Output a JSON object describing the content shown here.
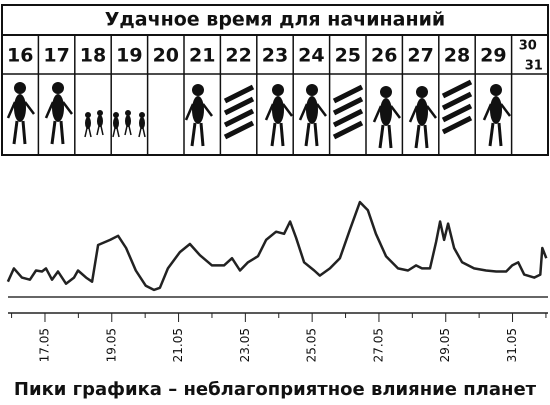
{
  "title": "Удачное время для начинаний",
  "days": [
    "16",
    "17",
    "18",
    "19",
    "20",
    "21",
    "22",
    "23",
    "24",
    "25",
    "26",
    "27",
    "28",
    "29"
  ],
  "last_days": [
    "30",
    "31"
  ],
  "caption": "Пики графика – неблагоприятное влияние планет",
  "chart_data": {
    "type": "line",
    "color": "#222222",
    "x": [
      15.89,
      16.07,
      16.31,
      16.55,
      16.73,
      16.91,
      17.03,
      17.21,
      17.39,
      17.63,
      17.87,
      17.99,
      18.23,
      18.41,
      18.59,
      18.95,
      19.19,
      19.43,
      19.72,
      20.02,
      20.26,
      20.44,
      20.68,
      21.04,
      21.34,
      21.64,
      22.0,
      22.36,
      22.6,
      22.84,
      23.08,
      23.38,
      23.62,
      23.92,
      24.16,
      24.34,
      24.52,
      24.76,
      25.06,
      25.23,
      25.53,
      25.83,
      26.13,
      26.43,
      26.67,
      26.91,
      27.21,
      27.57,
      27.87,
      28.11,
      28.29,
      28.53,
      28.71,
      28.83,
      28.95,
      29.07,
      29.25,
      29.49,
      29.85,
      30.21,
      30.51,
      30.81,
      30.99,
      31.17,
      31.35,
      31.65,
      31.83,
      31.89,
      32.01
    ],
    "values": [
      1.5,
      2.8,
      1.9,
      1.7,
      2.6,
      2.5,
      2.8,
      1.7,
      2.5,
      1.3,
      1.9,
      2.6,
      1.9,
      1.5,
      5.1,
      5.6,
      6.0,
      4.8,
      2.6,
      1.1,
      0.7,
      0.9,
      2.8,
      4.4,
      5.2,
      4.1,
      3.1,
      3.1,
      3.8,
      2.6,
      3.4,
      4.0,
      5.6,
      6.4,
      6.2,
      7.4,
      5.8,
      3.4,
      2.6,
      2.1,
      2.8,
      3.8,
      6.6,
      9.3,
      8.5,
      6.2,
      4.0,
      2.8,
      2.6,
      3.1,
      2.8,
      2.8,
      5.4,
      7.4,
      5.6,
      7.2,
      4.8,
      3.4,
      2.8,
      2.6,
      2.5,
      2.5,
      3.1,
      3.4,
      2.2,
      1.9,
      2.2,
      4.8,
      3.8
    ],
    "xlim": [
      15.8,
      32.05
    ],
    "ylim": [
      0,
      10
    ],
    "xticks": [
      {
        "value": 17,
        "label": "17.05"
      },
      {
        "value": 19,
        "label": "19.05"
      },
      {
        "value": 21,
        "label": "21.05"
      },
      {
        "value": 23,
        "label": "23.05"
      },
      {
        "value": 25,
        "label": "25.05"
      },
      {
        "value": 27,
        "label": "27.05"
      },
      {
        "value": 29,
        "label": "29.05"
      },
      {
        "value": 31,
        "label": "31.05"
      }
    ],
    "minor_xticks": [
      16,
      18,
      20,
      22,
      24,
      26,
      28,
      30,
      32
    ]
  }
}
